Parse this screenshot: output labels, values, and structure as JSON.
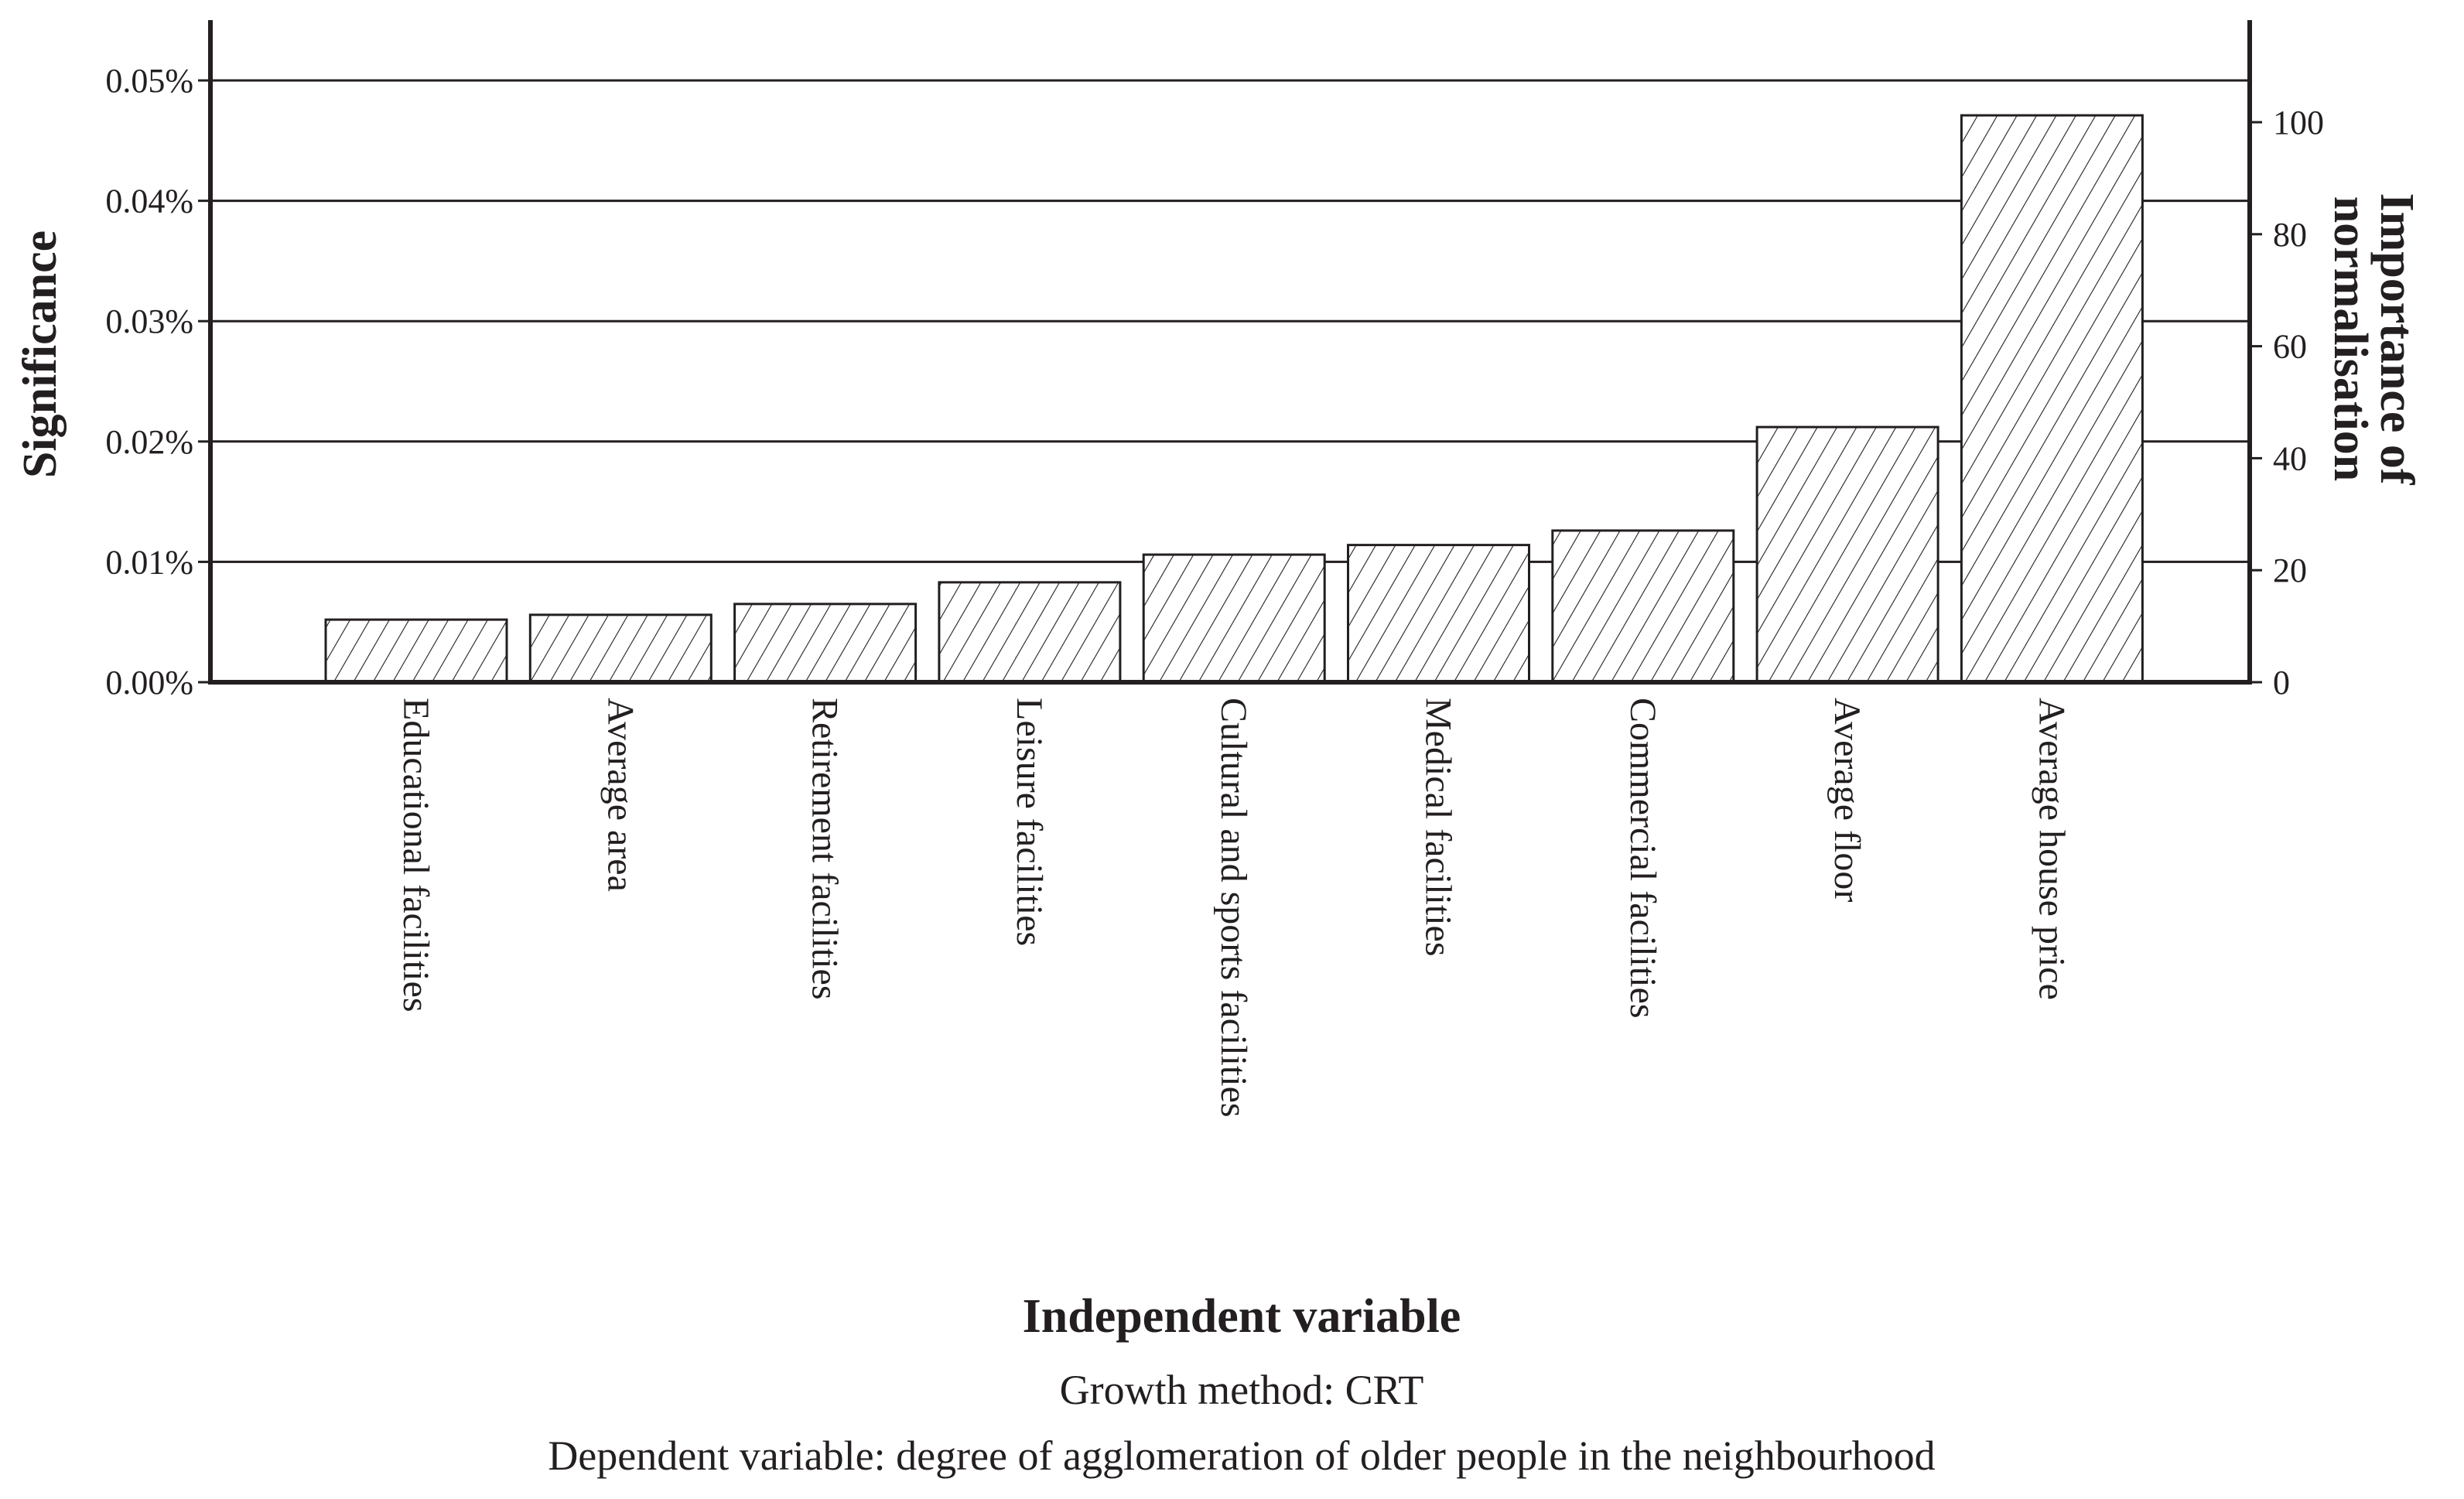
{
  "chart_data": {
    "type": "bar",
    "categories": [
      "Educational facilities",
      "Average area",
      "Retirement facilities",
      "Leisure facilities",
      "Cultural and sports facilities",
      "Medical facilities",
      "Commercial facilities",
      "Average floor",
      "Average house price"
    ],
    "values": [
      0.0052,
      0.0056,
      0.0065,
      0.0083,
      0.0106,
      0.0114,
      0.0126,
      0.0212,
      0.0471
    ],
    "xlabel": "Independent variable",
    "ylabel": "Significance",
    "ylim": [
      0,
      0.05
    ],
    "yticks": [
      "0.00%",
      "0.01%",
      "0.02%",
      "0.03%",
      "0.04%",
      "0.05%"
    ],
    "y2label": "Importance of normalisation",
    "y2ticks": [
      "0",
      "20",
      "40",
      "60",
      "80",
      "100"
    ],
    "y2lim": [
      0,
      100
    ],
    "captions": [
      "Growth method: CRT",
      "Dependent variable: degree of agglomeration of older people in the neighbourhood"
    ],
    "grid": true,
    "bar_fill": "hatched",
    "colors": {
      "ink": "#231f20",
      "bar_fill": "#ffffff"
    }
  }
}
